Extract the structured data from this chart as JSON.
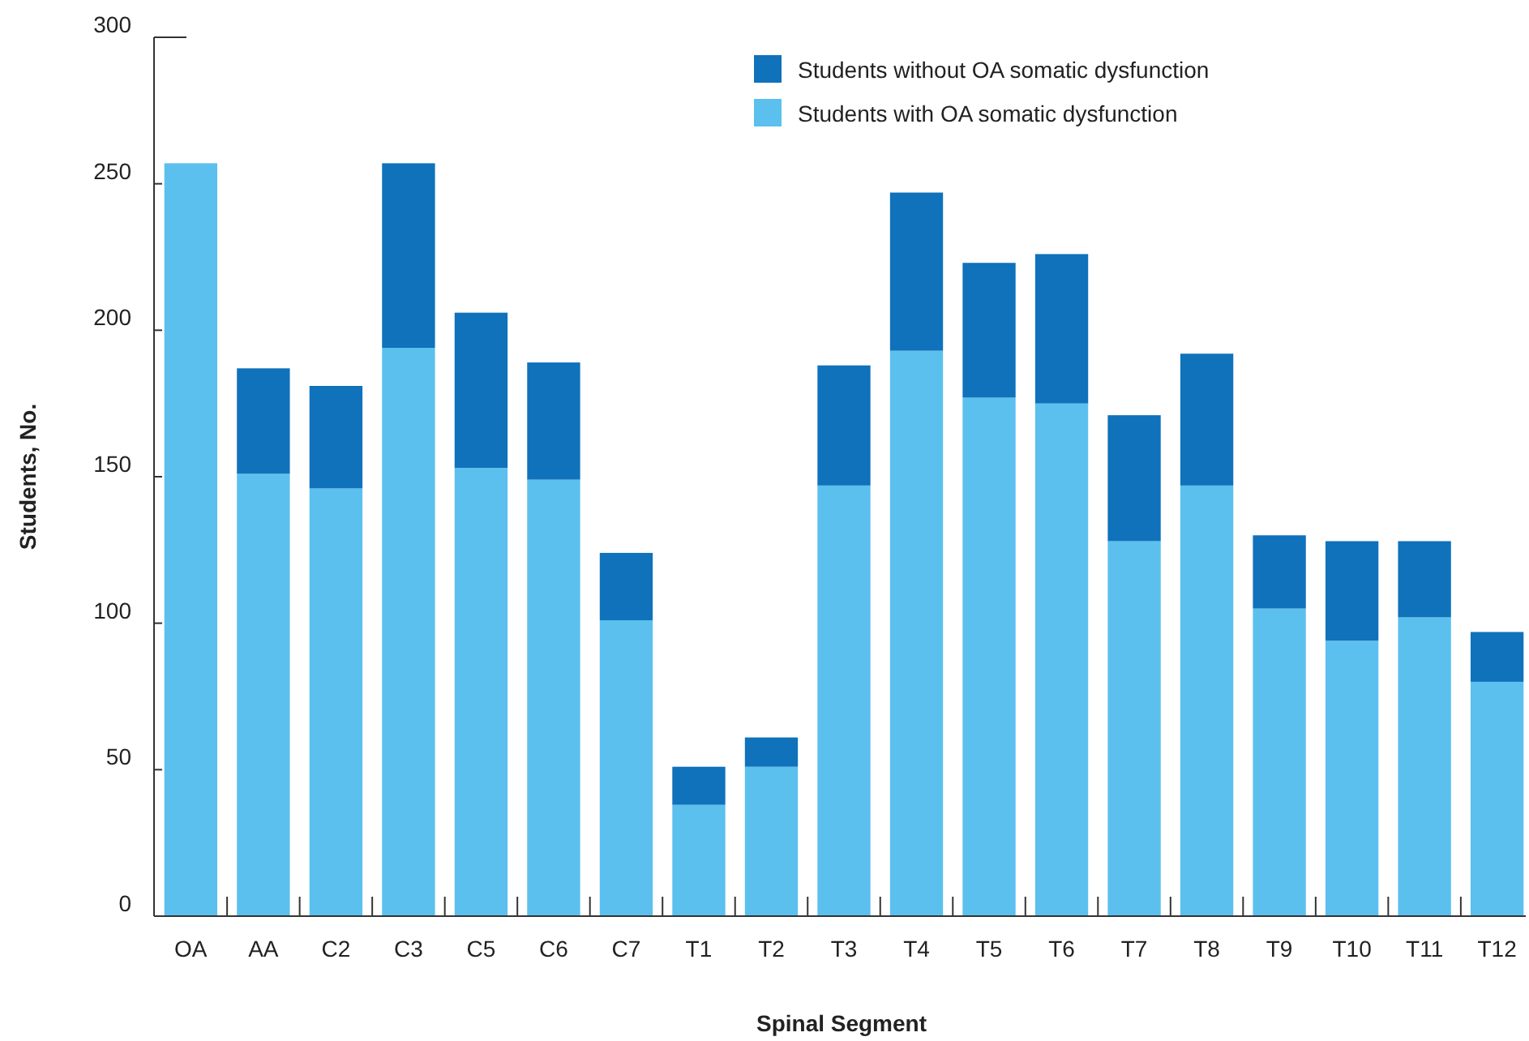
{
  "chart_data": {
    "type": "bar",
    "stacked": true,
    "xlabel": "Spinal Segment",
    "ylabel": "Students, No.",
    "categories": [
      "OA",
      "AA",
      "C2",
      "C3",
      "C5",
      "C6",
      "C7",
      "T1",
      "T2",
      "T3",
      "T4",
      "T5",
      "T6",
      "T7",
      "T8",
      "T9",
      "T10",
      "T11",
      "T12"
    ],
    "series": [
      {
        "name": "Students with OA somatic dysfunction",
        "color": "#5bc0ee",
        "values": [
          257,
          151,
          146,
          194,
          153,
          149,
          101,
          38,
          51,
          147,
          193,
          177,
          175,
          128,
          147,
          105,
          94,
          102,
          80
        ]
      },
      {
        "name": "Students without OA somatic dysfunction",
        "color": "#0f72bb",
        "values": [
          0,
          36,
          35,
          63,
          53,
          40,
          23,
          13,
          10,
          41,
          54,
          46,
          51,
          43,
          45,
          25,
          34,
          26,
          17
        ]
      }
    ],
    "ylim": [
      0,
      300
    ],
    "yticks": [
      0,
      50,
      100,
      150,
      200,
      250,
      300
    ],
    "grid": false,
    "legend": "top right"
  }
}
